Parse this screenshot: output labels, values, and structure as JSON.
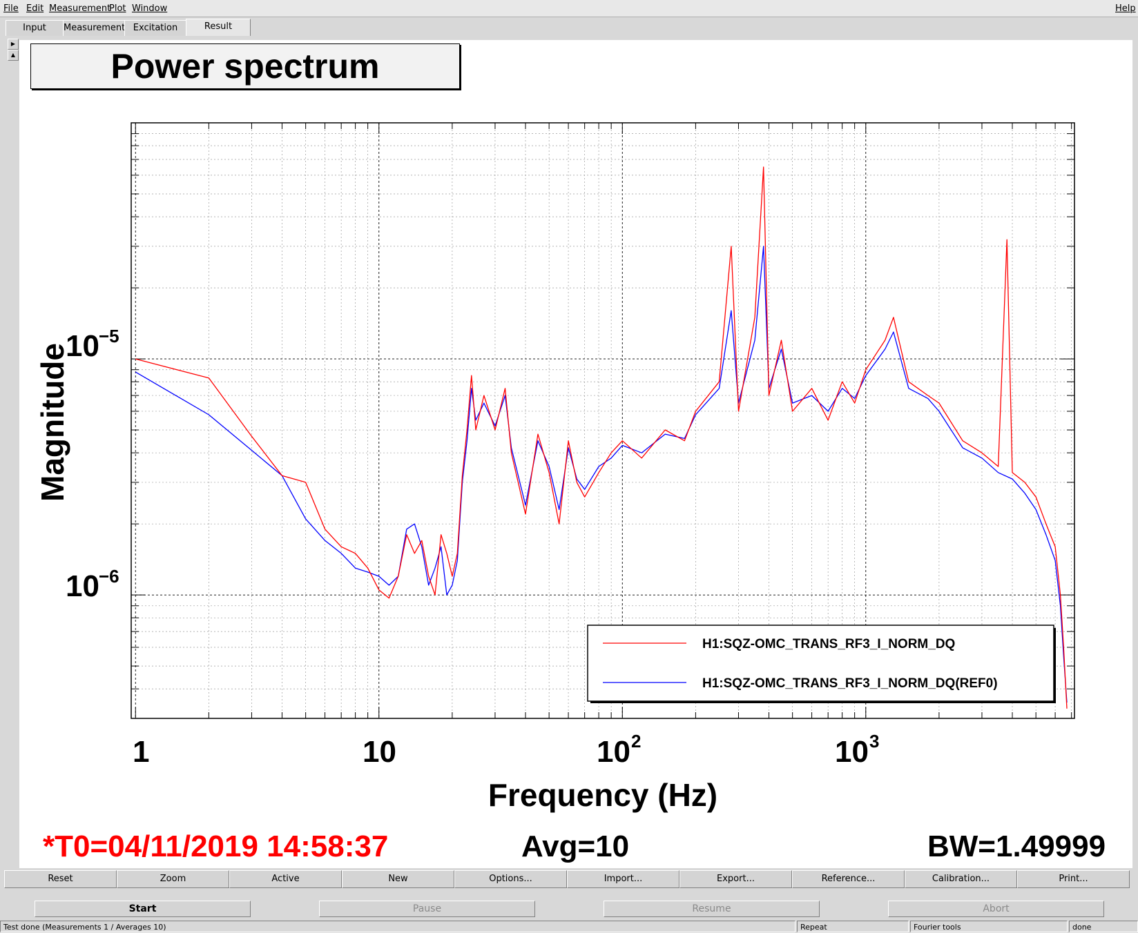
{
  "menu": {
    "file": "File",
    "edit": "Edit",
    "measurement": "Measurement",
    "plot": "Plot",
    "window": "Window",
    "help": "Help"
  },
  "tabs": {
    "input": "Input",
    "measurement": "Measurement",
    "excitation": "Excitation",
    "result": "Result"
  },
  "plot": {
    "title": "Power spectrum",
    "xlabel": "Frequency (Hz)",
    "ylabel": "Magnitude",
    "xticks": [
      "1",
      "10",
      "10",
      "10"
    ],
    "xtick_exp": [
      "",
      "",
      "2",
      "3"
    ],
    "yticks": [
      "10",
      "10"
    ],
    "ytick_exp": [
      "−5",
      "−6"
    ]
  },
  "footer": {
    "t0": "*T0=04/11/2019 14:58:37",
    "avg": "Avg=10",
    "bw": "BW=1.49999"
  },
  "colors": {
    "series_red": "#ff0000",
    "series_blue": "#0000ff",
    "t0_text": "#ff0000"
  },
  "buttons_row1": {
    "reset": "Reset",
    "zoom": "Zoom",
    "active": "Active",
    "new": "New",
    "options": "Options...",
    "import": "Import...",
    "export": "Export...",
    "reference": "Reference...",
    "calibration": "Calibration...",
    "print": "Print..."
  },
  "buttons_row2": {
    "start": "Start",
    "pause": "Pause",
    "resume": "Resume",
    "abort": "Abort"
  },
  "status": {
    "message": "Test done (Measurements 1 / Averages 10)",
    "repeat": "Repeat",
    "fourier": "Fourier tools",
    "state": "done"
  },
  "chart_data": {
    "type": "line",
    "title": "Power spectrum",
    "xlabel": "Frequency (Hz)",
    "ylabel": "Magnitude",
    "xscale": "log",
    "yscale": "log",
    "xlim": [
      0.96,
      7200
    ],
    "ylim": [
      3e-07,
      0.0001
    ],
    "grid": true,
    "legend_position": "bottom-right",
    "series": [
      {
        "name": "H1:SQZ-OMC_TRANS_RF3_I_NORM_DQ",
        "color": "#ff0000",
        "x": [
          1,
          2,
          3,
          4,
          5,
          6,
          7,
          8,
          9,
          10,
          11,
          12,
          13,
          14,
          15,
          16,
          17,
          18,
          19,
          20,
          21,
          22,
          23,
          24,
          25,
          27,
          30,
          33,
          35,
          40,
          45,
          50,
          55,
          60,
          65,
          70,
          80,
          90,
          100,
          120,
          150,
          180,
          200,
          250,
          280,
          300,
          350,
          380,
          400,
          450,
          500,
          600,
          700,
          800,
          900,
          1000,
          1200,
          1300,
          1500,
          1800,
          2000,
          2500,
          3000,
          3500,
          3800,
          4000,
          4500,
          5000,
          5500,
          6000,
          6300,
          6500,
          6700
        ],
        "y": [
          1e-05,
          8.3e-06,
          4.7e-06,
          3.2e-06,
          3e-06,
          1.9e-06,
          1.6e-06,
          1.5e-06,
          1.3e-06,
          1.05e-06,
          9.7e-07,
          1.2e-06,
          1.8e-06,
          1.5e-06,
          1.7e-06,
          1.2e-06,
          1e-06,
          1.8e-06,
          1.5e-06,
          1.2e-06,
          1.5e-06,
          3.2e-06,
          5e-06,
          8.5e-06,
          5e-06,
          7e-06,
          5e-06,
          7.5e-06,
          4e-06,
          2.2e-06,
          4.8e-06,
          3.3e-06,
          2e-06,
          4.5e-06,
          3e-06,
          2.6e-06,
          3.3e-06,
          4e-06,
          4.5e-06,
          3.8e-06,
          5e-06,
          4.5e-06,
          6e-06,
          8e-06,
          3e-05,
          6e-06,
          1.5e-05,
          6.5e-05,
          7e-06,
          1.2e-05,
          6e-06,
          7.5e-06,
          5.5e-06,
          8e-06,
          6.5e-06,
          9e-06,
          1.2e-05,
          1.5e-05,
          8e-06,
          7e-06,
          6.5e-06,
          4.5e-06,
          4e-06,
          3.5e-06,
          3.2e-05,
          3.3e-06,
          3e-06,
          2.6e-06,
          2e-06,
          1.6e-06,
          1e-06,
          6e-07,
          3.3e-07
        ]
      },
      {
        "name": "H1:SQZ-OMC_TRANS_RF3_I_NORM_DQ(REF0)",
        "color": "#0000ff",
        "x": [
          1,
          2,
          3,
          4,
          5,
          6,
          7,
          8,
          9,
          10,
          11,
          12,
          13,
          14,
          15,
          16,
          17,
          18,
          19,
          20,
          21,
          22,
          23,
          24,
          25,
          27,
          30,
          33,
          35,
          40,
          45,
          50,
          55,
          60,
          65,
          70,
          80,
          90,
          100,
          120,
          150,
          180,
          200,
          250,
          280,
          300,
          350,
          380,
          400,
          450,
          500,
          600,
          700,
          800,
          900,
          1000,
          1200,
          1300,
          1500,
          1800,
          2000,
          2500,
          3000,
          3500,
          4000,
          4500,
          5000,
          5500,
          6000,
          6300,
          6500,
          6700
        ],
        "y": [
          8.8e-06,
          5.8e-06,
          4.1e-06,
          3.2e-06,
          2.1e-06,
          1.7e-06,
          1.5e-06,
          1.3e-06,
          1.25e-06,
          1.2e-06,
          1.1e-06,
          1.2e-06,
          1.9e-06,
          2e-06,
          1.6e-06,
          1.1e-06,
          1.3e-06,
          1.6e-06,
          1e-06,
          1.1e-06,
          1.4e-06,
          3e-06,
          4.5e-06,
          7.5e-06,
          5.5e-06,
          6.5e-06,
          5.2e-06,
          7e-06,
          4.2e-06,
          2.4e-06,
          4.5e-06,
          3.5e-06,
          2.3e-06,
          4.2e-06,
          3.1e-06,
          2.8e-06,
          3.5e-06,
          3.8e-06,
          4.3e-06,
          4e-06,
          4.8e-06,
          4.6e-06,
          5.8e-06,
          7.5e-06,
          1.6e-05,
          6.5e-06,
          1.2e-05,
          3e-05,
          7.5e-06,
          1.1e-05,
          6.5e-06,
          7e-06,
          6e-06,
          7.5e-06,
          6.8e-06,
          8.5e-06,
          1.1e-05,
          1.3e-05,
          7.5e-06,
          6.8e-06,
          6e-06,
          4.2e-06,
          3.8e-06,
          3.3e-06,
          3.1e-06,
          2.7e-06,
          2.3e-06,
          1.8e-06,
          1.4e-06,
          9e-07,
          5.5e-07,
          3.5e-07
        ]
      }
    ]
  }
}
